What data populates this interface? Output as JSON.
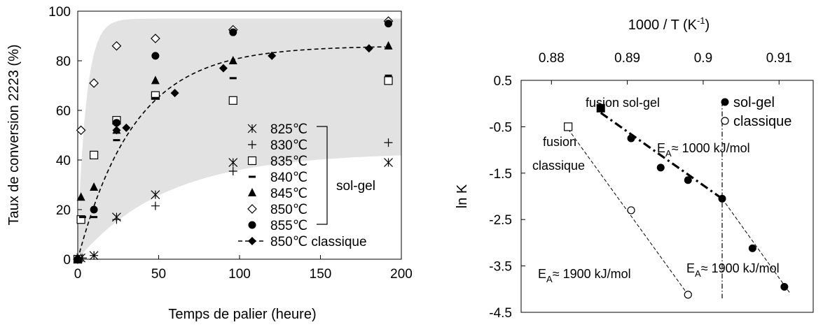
{
  "chart_data": [
    {
      "type": "scatter",
      "xlabel": "Temps de palier (heure)",
      "ylabel": "Taux de conversion 2223 (%)",
      "xlim": [
        0,
        200
      ],
      "ylim": [
        0,
        100
      ],
      "x_ticks": [
        "0",
        "50",
        "100",
        "150",
        "200"
      ],
      "y_ticks": [
        "0",
        "20",
        "40",
        "60",
        "80",
        "100"
      ],
      "grid": false,
      "shaded_band": true,
      "legend_position": "bottom-right",
      "bracket_label": "sol-gel",
      "series": [
        {
          "name": "825℃",
          "marker": "asterisk",
          "points": [
            [
              0,
              0
            ],
            [
              2,
              0.5
            ],
            [
              10,
              1.5
            ],
            [
              24,
              17
            ],
            [
              48,
              26
            ],
            [
              96,
              39
            ],
            [
              192,
              39
            ]
          ]
        },
        {
          "name": "830℃",
          "marker": "plus",
          "points": [
            [
              0,
              0
            ],
            [
              3,
              0.5
            ],
            [
              10,
              1.5
            ],
            [
              24,
              16
            ],
            [
              48,
              21.5
            ],
            [
              96,
              35.5
            ],
            [
              192,
              47
            ]
          ]
        },
        {
          "name": "835℃",
          "marker": "square-open",
          "points": [
            [
              0,
              0
            ],
            [
              2,
              16
            ],
            [
              10,
              42
            ],
            [
              24,
              56
            ],
            [
              48,
              66
            ],
            [
              96,
              64
            ],
            [
              192,
              72
            ]
          ]
        },
        {
          "name": "840℃",
          "marker": "dash",
          "points": [
            [
              0,
              0
            ],
            [
              3,
              17
            ],
            [
              10,
              17
            ],
            [
              24,
              48
            ],
            [
              48,
              65
            ],
            [
              96,
              73
            ],
            [
              192,
              74
            ]
          ]
        },
        {
          "name": "845℃",
          "marker": "triangle-filled",
          "points": [
            [
              0,
              0
            ],
            [
              2,
              25
            ],
            [
              10,
              29
            ],
            [
              24,
              52
            ],
            [
              48,
              72
            ],
            [
              96,
              80
            ],
            [
              192,
              86
            ]
          ]
        },
        {
          "name": "850℃",
          "marker": "diamond-open",
          "points": [
            [
              0,
              0
            ],
            [
              2,
              52
            ],
            [
              10,
              71
            ],
            [
              24,
              86
            ],
            [
              48,
              89
            ],
            [
              96,
              92.5
            ],
            [
              192,
              96
            ]
          ]
        },
        {
          "name": "855℃",
          "marker": "circle-filled",
          "points": [
            [
              0,
              0
            ],
            [
              10,
              20
            ],
            [
              24,
              55
            ],
            [
              48,
              82
            ],
            [
              96,
              91.5
            ],
            [
              192,
              95
            ]
          ]
        },
        {
          "name": "850℃ classique",
          "marker": "diamond-filled",
          "line": "dashed",
          "points": [
            [
              0,
              0
            ],
            [
              24,
              52
            ],
            [
              30,
              53
            ],
            [
              60,
              67
            ],
            [
              90,
              77
            ],
            [
              120,
              82
            ],
            [
              180,
              85
            ]
          ]
        }
      ]
    },
    {
      "type": "scatter",
      "top_xlabel": "1000 / T (K",
      "top_xlabel_sup": "-1",
      "top_xlabel_end": ")",
      "ylabel": "ln K",
      "xlim": [
        0.876,
        0.9145
      ],
      "ylim": [
        -4.5,
        0.5
      ],
      "x_ticks": [
        "0.88",
        "0.89",
        "0.9",
        "0.91"
      ],
      "y_ticks": [
        "0.5",
        "-0.5",
        "-1.5",
        "-2.5",
        "-3.5",
        "-4.5"
      ],
      "grid": false,
      "legend_position": "top-right",
      "vertical_line_x": 0.9025,
      "series": [
        {
          "name": "sol-gel",
          "marker": "circle-filled",
          "points": [
            [
              0.8905,
              -0.75
            ],
            [
              0.8944,
              -1.38
            ],
            [
              0.898,
              -1.65
            ],
            [
              0.9025,
              -2.05
            ],
            [
              0.9065,
              -3.12
            ],
            [
              0.9107,
              -3.95
            ]
          ]
        },
        {
          "name": "classique",
          "marker": "circle-open",
          "points": [
            [
              0.8905,
              -2.3
            ],
            [
              0.898,
              -4.12
            ]
          ]
        },
        {
          "name": "fusion sol-gel",
          "marker": "square-filled",
          "points": [
            [
              0.8865,
              -0.1
            ]
          ]
        },
        {
          "name": "fusion classique",
          "marker": "square-open",
          "points": [
            [
              0.8822,
              -0.5
            ]
          ]
        }
      ],
      "fit_lines": [
        {
          "style": "dash-dot-bold",
          "points": [
            [
              0.8865,
              -0.2
            ],
            [
              0.9025,
              -2.05
            ]
          ]
        },
        {
          "style": "dashed-thin",
          "points": [
            [
              0.9025,
              -2.05
            ],
            [
              0.9115,
              -4.1
            ]
          ]
        },
        {
          "style": "dashed-thin",
          "points": [
            [
              0.8822,
              -0.55
            ],
            [
              0.898,
              -4.12
            ]
          ]
        }
      ],
      "annotations": {
        "fusion_solgel": "fusion sol-gel",
        "fusion_classique_1": "fusion",
        "fusion_classique_2": "classique",
        "ea_sub": "A",
        "ea_1000": "≈ 1000 kJ/mol",
        "ea_1900_left": "≈ 1900 kJ/mol",
        "ea_1900_right": "≈ 1900 kJ/mol",
        "ea_prefix": "E"
      }
    }
  ]
}
